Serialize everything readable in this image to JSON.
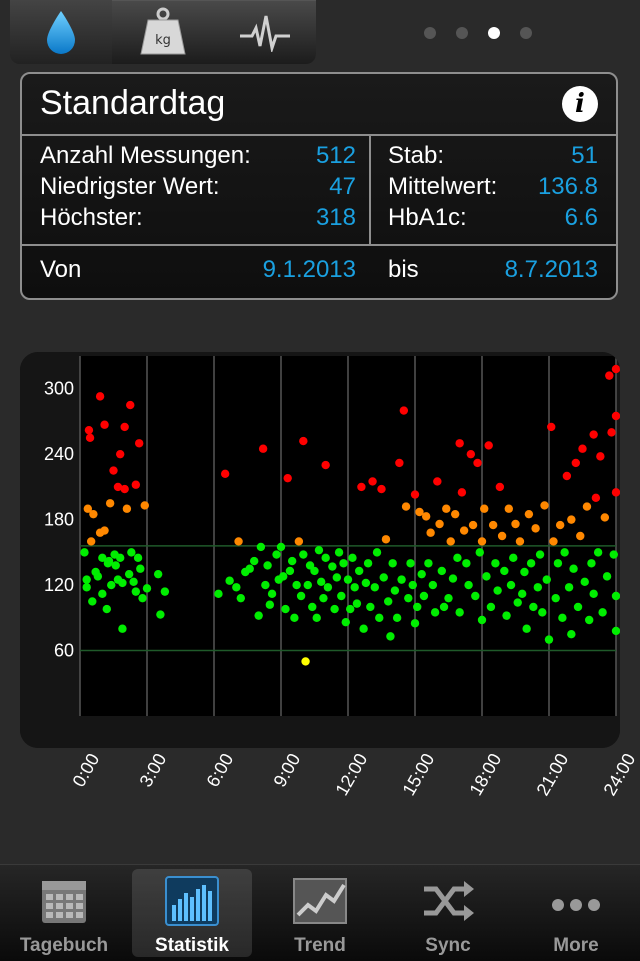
{
  "top_tabs": [
    {
      "name": "glucose",
      "icon": "drop-icon",
      "active": true
    },
    {
      "name": "weight",
      "icon": "weight-icon",
      "label": "kg",
      "active": false
    },
    {
      "name": "pulse",
      "icon": "heartbeat-icon",
      "active": false
    }
  ],
  "page_indicator": {
    "count": 4,
    "current": 3
  },
  "summary": {
    "title": "Standardtag",
    "rows": [
      {
        "label": "Anzahl Messungen:",
        "value": "512"
      },
      {
        "label": "Niedrigster Wert:",
        "value": "47"
      },
      {
        "label": "Höchster:",
        "value": "318"
      }
    ],
    "right_rows": [
      {
        "label": "Stab:",
        "value": "51"
      },
      {
        "label": "Mittelwert:",
        "value": "136.8"
      },
      {
        "label": "HbA1c:",
        "value": "6.6"
      }
    ],
    "from_label": "Von",
    "from_date": "9.1.2013",
    "to_label": "bis",
    "to_date": "8.7.2013"
  },
  "chart_data": {
    "type": "scatter",
    "title": "",
    "xlabel": "",
    "ylabel": "",
    "x_ticks": [
      "0:00",
      "3:00",
      "6:00",
      "9:00",
      "12:00",
      "15:00",
      "18:00",
      "21:00",
      "24:00"
    ],
    "y_ticks": [
      "60",
      "120",
      "180",
      "240",
      "300"
    ],
    "xlim": [
      0,
      24
    ],
    "ylim": [
      0,
      330
    ],
    "target_range": [
      60,
      156
    ],
    "colors": {
      "low": "#ffff00",
      "target": "#00ee00",
      "elevated": "#ff8800",
      "high": "#ff0000"
    },
    "thresholds": {
      "low": 60,
      "elevated": 156,
      "high": 200
    },
    "points": [
      [
        0.2,
        150
      ],
      [
        0.3,
        118
      ],
      [
        0.3,
        125
      ],
      [
        0.35,
        190
      ],
      [
        0.4,
        262
      ],
      [
        0.45,
        255
      ],
      [
        0.5,
        160
      ],
      [
        0.55,
        105
      ],
      [
        0.6,
        185
      ],
      [
        0.7,
        132
      ],
      [
        0.8,
        128
      ],
      [
        0.9,
        293
      ],
      [
        0.9,
        168
      ],
      [
        1.0,
        145
      ],
      [
        1.0,
        112
      ],
      [
        1.1,
        267
      ],
      [
        1.1,
        170
      ],
      [
        1.2,
        98
      ],
      [
        1.25,
        140
      ],
      [
        1.3,
        142
      ],
      [
        1.35,
        195
      ],
      [
        1.4,
        120
      ],
      [
        1.5,
        225
      ],
      [
        1.55,
        148
      ],
      [
        1.6,
        138
      ],
      [
        1.7,
        210
      ],
      [
        1.7,
        125
      ],
      [
        1.8,
        240
      ],
      [
        1.8,
        145
      ],
      [
        1.9,
        80
      ],
      [
        1.9,
        122
      ],
      [
        2.0,
        208
      ],
      [
        2.0,
        265
      ],
      [
        2.1,
        190
      ],
      [
        2.2,
        130
      ],
      [
        2.25,
        285
      ],
      [
        2.3,
        150
      ],
      [
        2.4,
        123
      ],
      [
        2.5,
        212
      ],
      [
        2.5,
        114
      ],
      [
        2.6,
        145
      ],
      [
        2.65,
        250
      ],
      [
        2.7,
        135
      ],
      [
        2.8,
        108
      ],
      [
        2.9,
        193
      ],
      [
        3.0,
        117
      ],
      [
        3.5,
        130
      ],
      [
        3.6,
        93
      ],
      [
        3.8,
        114
      ],
      [
        6.2,
        112
      ],
      [
        6.5,
        222
      ],
      [
        6.7,
        124
      ],
      [
        7.0,
        118
      ],
      [
        7.1,
        160
      ],
      [
        7.2,
        108
      ],
      [
        7.4,
        132
      ],
      [
        7.6,
        135
      ],
      [
        7.8,
        142
      ],
      [
        8.0,
        92
      ],
      [
        8.1,
        155
      ],
      [
        8.2,
        245
      ],
      [
        8.3,
        120
      ],
      [
        8.4,
        138
      ],
      [
        8.5,
        102
      ],
      [
        8.6,
        112
      ],
      [
        8.8,
        148
      ],
      [
        8.9,
        125
      ],
      [
        9.0,
        155
      ],
      [
        9.1,
        128
      ],
      [
        9.2,
        98
      ],
      [
        9.3,
        218
      ],
      [
        9.4,
        133
      ],
      [
        9.5,
        142
      ],
      [
        9.6,
        90
      ],
      [
        9.7,
        120
      ],
      [
        9.8,
        160
      ],
      [
        9.9,
        110
      ],
      [
        10.0,
        252
      ],
      [
        10.0,
        148
      ],
      [
        10.1,
        50
      ],
      [
        10.2,
        120
      ],
      [
        10.3,
        138
      ],
      [
        10.4,
        100
      ],
      [
        10.5,
        133
      ],
      [
        10.6,
        90
      ],
      [
        10.7,
        152
      ],
      [
        10.8,
        123
      ],
      [
        10.9,
        108
      ],
      [
        11.0,
        230
      ],
      [
        11.0,
        145
      ],
      [
        11.1,
        118
      ],
      [
        11.3,
        137
      ],
      [
        11.4,
        98
      ],
      [
        11.5,
        127
      ],
      [
        11.6,
        150
      ],
      [
        11.7,
        110
      ],
      [
        11.8,
        140
      ],
      [
        11.9,
        86
      ],
      [
        12.0,
        125
      ],
      [
        12.1,
        98
      ],
      [
        12.2,
        145
      ],
      [
        12.3,
        118
      ],
      [
        12.4,
        103
      ],
      [
        12.5,
        133
      ],
      [
        12.6,
        210
      ],
      [
        12.7,
        80
      ],
      [
        12.8,
        122
      ],
      [
        12.9,
        140
      ],
      [
        13.0,
        100
      ],
      [
        13.1,
        215
      ],
      [
        13.2,
        118
      ],
      [
        13.3,
        150
      ],
      [
        13.4,
        90
      ],
      [
        13.5,
        208
      ],
      [
        13.6,
        127
      ],
      [
        13.7,
        162
      ],
      [
        13.8,
        105
      ],
      [
        13.9,
        73
      ],
      [
        14.0,
        140
      ],
      [
        14.1,
        115
      ],
      [
        14.2,
        90
      ],
      [
        14.3,
        232
      ],
      [
        14.4,
        125
      ],
      [
        14.5,
        280
      ],
      [
        14.6,
        192
      ],
      [
        14.7,
        108
      ],
      [
        14.8,
        140
      ],
      [
        14.9,
        120
      ],
      [
        15.0,
        85
      ],
      [
        15.0,
        203
      ],
      [
        15.1,
        100
      ],
      [
        15.2,
        187
      ],
      [
        15.3,
        130
      ],
      [
        15.4,
        110
      ],
      [
        15.5,
        183
      ],
      [
        15.6,
        140
      ],
      [
        15.7,
        168
      ],
      [
        15.8,
        120
      ],
      [
        15.9,
        95
      ],
      [
        16.0,
        215
      ],
      [
        16.1,
        176
      ],
      [
        16.2,
        133
      ],
      [
        16.3,
        100
      ],
      [
        16.4,
        190
      ],
      [
        16.5,
        108
      ],
      [
        16.6,
        160
      ],
      [
        16.7,
        126
      ],
      [
        16.8,
        185
      ],
      [
        16.9,
        145
      ],
      [
        17.0,
        250
      ],
      [
        17.0,
        95
      ],
      [
        17.1,
        205
      ],
      [
        17.2,
        170
      ],
      [
        17.3,
        140
      ],
      [
        17.4,
        120
      ],
      [
        17.5,
        240
      ],
      [
        17.6,
        175
      ],
      [
        17.7,
        110
      ],
      [
        17.8,
        232
      ],
      [
        17.9,
        150
      ],
      [
        18.0,
        160
      ],
      [
        18.0,
        88
      ],
      [
        18.1,
        190
      ],
      [
        18.2,
        128
      ],
      [
        18.3,
        248
      ],
      [
        18.4,
        100
      ],
      [
        18.5,
        175
      ],
      [
        18.6,
        140
      ],
      [
        18.7,
        115
      ],
      [
        18.8,
        210
      ],
      [
        18.9,
        165
      ],
      [
        19.0,
        133
      ],
      [
        19.1,
        92
      ],
      [
        19.2,
        190
      ],
      [
        19.3,
        120
      ],
      [
        19.4,
        145
      ],
      [
        19.5,
        176
      ],
      [
        19.6,
        104
      ],
      [
        19.7,
        160
      ],
      [
        19.8,
        112
      ],
      [
        19.9,
        132
      ],
      [
        20.0,
        80
      ],
      [
        20.1,
        185
      ],
      [
        20.2,
        140
      ],
      [
        20.3,
        100
      ],
      [
        20.4,
        172
      ],
      [
        20.5,
        118
      ],
      [
        20.6,
        148
      ],
      [
        20.7,
        95
      ],
      [
        20.8,
        193
      ],
      [
        20.9,
        125
      ],
      [
        21.0,
        70
      ],
      [
        21.1,
        265
      ],
      [
        21.2,
        160
      ],
      [
        21.3,
        108
      ],
      [
        21.4,
        140
      ],
      [
        21.5,
        175
      ],
      [
        21.6,
        90
      ],
      [
        21.7,
        150
      ],
      [
        21.8,
        220
      ],
      [
        21.9,
        118
      ],
      [
        22.0,
        180
      ],
      [
        22.0,
        75
      ],
      [
        22.1,
        135
      ],
      [
        22.2,
        232
      ],
      [
        22.3,
        100
      ],
      [
        22.4,
        165
      ],
      [
        22.5,
        245
      ],
      [
        22.6,
        123
      ],
      [
        22.7,
        192
      ],
      [
        22.8,
        88
      ],
      [
        22.9,
        140
      ],
      [
        23.0,
        258
      ],
      [
        23.0,
        112
      ],
      [
        23.1,
        200
      ],
      [
        23.2,
        150
      ],
      [
        23.3,
        238
      ],
      [
        23.4,
        95
      ],
      [
        23.5,
        182
      ],
      [
        23.6,
        128
      ],
      [
        23.7,
        312
      ],
      [
        23.8,
        260
      ],
      [
        23.9,
        148
      ],
      [
        24.0,
        318
      ],
      [
        24.0,
        275
      ],
      [
        24.0,
        205
      ],
      [
        24.0,
        110
      ],
      [
        24.0,
        78
      ]
    ]
  },
  "tabbar": [
    {
      "label": "Tagebuch",
      "icon": "calendar-icon",
      "active": false
    },
    {
      "label": "Statistik",
      "icon": "bar-chart-icon",
      "active": true
    },
    {
      "label": "Trend",
      "icon": "trend-icon",
      "active": false
    },
    {
      "label": "Sync",
      "icon": "shuffle-icon",
      "active": false
    },
    {
      "label": "More",
      "icon": "more-dots-icon",
      "active": false
    }
  ]
}
